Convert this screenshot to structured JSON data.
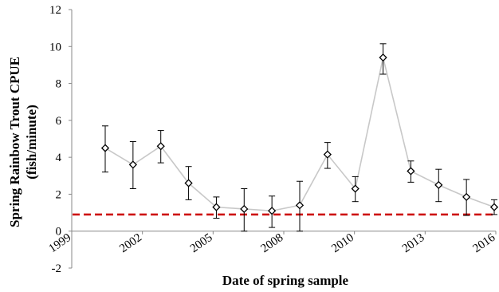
{
  "chart_data": {
    "type": "line",
    "xlabel": "Date of spring sample",
    "ylabel_line1": "Spring Rainbow Trout  CPUE",
    "ylabel_line2": "(fish/minute)",
    "x_tick_labels": [
      "1999",
      "2002",
      "2005",
      "2008",
      "2010",
      "2013",
      "2016"
    ],
    "y_tick_labels": [
      "-2",
      "0",
      "2",
      "4",
      "6",
      "8",
      "10",
      "12"
    ],
    "ylim": [
      -2,
      12
    ],
    "grid": false,
    "series": [
      {
        "values": [
          4.5,
          3.6,
          4.6,
          2.6,
          1.3,
          1.2,
          1.1,
          1.4,
          4.15,
          2.3,
          9.4,
          3.25,
          2.5,
          1.85,
          1.3
        ],
        "error_low": [
          1.3,
          1.3,
          0.9,
          0.9,
          0.6,
          1.2,
          0.9,
          1.4,
          0.75,
          0.7,
          0.9,
          0.6,
          0.9,
          1.0,
          0.4
        ],
        "error_high": [
          1.2,
          1.25,
          0.85,
          0.9,
          0.55,
          1.1,
          0.8,
          1.3,
          0.65,
          0.65,
          0.75,
          0.55,
          0.85,
          0.95,
          0.4
        ],
        "line_color": "#c8c8c8",
        "marker": "diamond"
      }
    ],
    "reference_line": {
      "value": 0.9,
      "color": "#cc0000",
      "style": "dashed"
    }
  }
}
